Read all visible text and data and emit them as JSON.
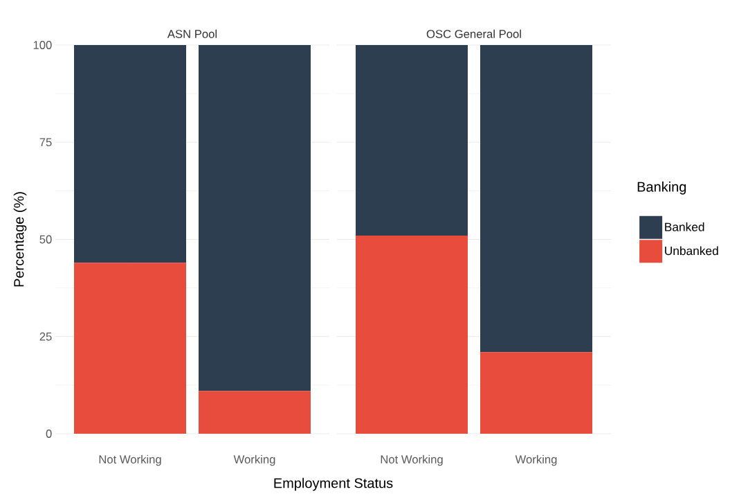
{
  "chart_data": [
    {
      "type": "bar",
      "title": "ASN Pool",
      "xlabel": "Employment Status",
      "ylabel": "Percentage (%)",
      "categories": [
        "Not Working",
        "Working"
      ],
      "stacked": true,
      "series": [
        {
          "color": "#e74c3c",
          "values": [
            44,
            11
          ]
        },
        {
          "color": "#2c3e50",
          "values": [
            56,
            89
          ]
        }
      ],
      "ylim": [
        0,
        100
      ],
      "yticks": [
        0,
        25,
        50,
        75,
        100
      ],
      "grid": true,
      "legend": false
    },
    {
      "type": "bar",
      "title": "OSC General Pool",
      "categories": [
        "Not Working",
        "Working"
      ],
      "stacked": true,
      "legend_title": "Banking",
      "series": [
        {
          "name": "Unbanked",
          "color": "#e74c3c",
          "values": [
            51,
            21
          ]
        },
        {
          "name": "Banked",
          "color": "#2c3e50",
          "values": [
            49,
            79
          ]
        }
      ],
      "ylim": [
        0,
        100
      ],
      "yticks": [
        0,
        25,
        50,
        75,
        100
      ],
      "grid": true,
      "legend": "right",
      "tick_labels": "x"
    }
  ]
}
